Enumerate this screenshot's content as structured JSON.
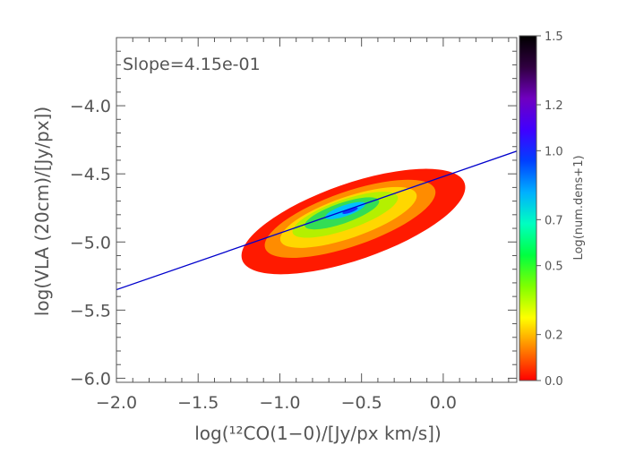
{
  "chart_data": {
    "type": "heatmap",
    "title": "",
    "annotation": "Slope=4.15e-01",
    "xlabel": "log(¹²CO(1−0)/[Jy/px km/s])",
    "ylabel": "log(VLA (20cm)/[Jy/px])",
    "xlim": [
      -2.0,
      0.45
    ],
    "ylim": [
      -6.03,
      -3.5
    ],
    "x_ticks": [
      -2.0,
      -1.5,
      -1.0,
      -0.5,
      0.0
    ],
    "x_tick_labels": [
      "−2.0",
      "−1.5",
      "−1.0",
      "−0.5",
      "0.0"
    ],
    "y_ticks": [
      -6.0,
      -5.5,
      -5.0,
      -4.5,
      -4.0
    ],
    "y_tick_labels": [
      "−6.0",
      "−5.5",
      "−5.0",
      "−4.5",
      "−4.0"
    ],
    "density_color_scale": "rainbow (red low → violet/black high)",
    "density_bands": [
      {
        "level": 0.0,
        "color": "#ff1a00",
        "cx": -0.55,
        "cy": -4.85,
        "a": 0.72,
        "b": 0.28
      },
      {
        "level": 0.2,
        "color": "#ff8c00",
        "cx": -0.57,
        "cy": -4.83,
        "a": 0.55,
        "b": 0.2
      },
      {
        "level": 0.35,
        "color": "#ffd700",
        "cx": -0.58,
        "cy": -4.82,
        "a": 0.44,
        "b": 0.15
      },
      {
        "level": 0.5,
        "color": "#b4f000",
        "cx": -0.6,
        "cy": -4.8,
        "a": 0.34,
        "b": 0.11
      },
      {
        "level": 0.65,
        "color": "#33dd55",
        "cx": -0.62,
        "cy": -4.79,
        "a": 0.24,
        "b": 0.075
      },
      {
        "level": 0.85,
        "color": "#00c0ff",
        "cx": -0.6,
        "cy": -4.77,
        "a": 0.13,
        "b": 0.04
      },
      {
        "level": 1.0,
        "color": "#1030ff",
        "cx": -0.57,
        "cy": -4.77,
        "a": 0.05,
        "b": 0.015
      }
    ],
    "fit_line": {
      "slope": 0.415,
      "intercept": -4.52,
      "color": "#0000cc"
    },
    "colorbar": {
      "label": "Log(num.dens+1)",
      "range": [
        0.0,
        1.5
      ],
      "ticks": [
        0.0,
        0.2,
        0.5,
        0.7,
        1.0,
        1.2,
        1.5
      ],
      "tick_labels": [
        "0.0",
        "0.2",
        "0.5",
        "0.7",
        "1.0",
        "1.2",
        "1.5"
      ],
      "stops": [
        "#ff0000",
        "#ff8000",
        "#ffff00",
        "#80ff00",
        "#00ff40",
        "#00ffc0",
        "#00b0ff",
        "#0040ff",
        "#4000ff",
        "#7000c0",
        "#300040",
        "#000000"
      ]
    }
  }
}
